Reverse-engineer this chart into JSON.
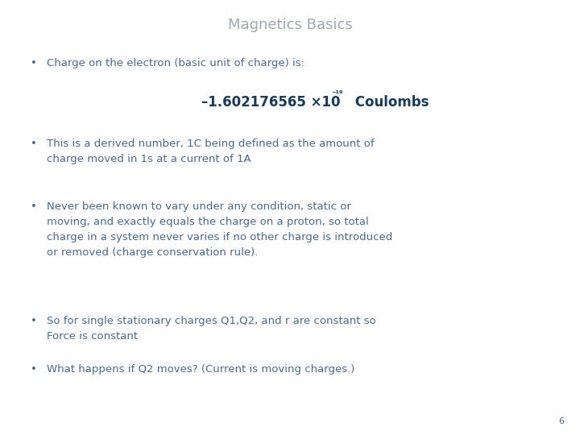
{
  "title": "Magnetics Basics",
  "title_color": "#a0a8b0",
  "title_fontsize": 13,
  "background_color": "#ffffff",
  "bullet_color": "#4a6a8a",
  "bullet_fontsize": 9.5,
  "highlight_color": "#1a3a5c",
  "highlight_fontsize": 12,
  "page_number": "6",
  "bullets": [
    "Charge on the electron (basic unit of charge) is:",
    "This is a derived number, 1C being defined as the amount of\ncharge moved in 1s at a current of 1A",
    "Never been known to vary under any condition, static or\nmoving, and exactly equals the charge on a proton, so total\ncharge in a system never varies if no other charge is introduced\nor removed (charge conservation rule).",
    "So for single stationary charges Q1,Q2, and r are constant so\nForce is constant",
    "What happens if Q2 moves? (Current is moving charges.)"
  ]
}
